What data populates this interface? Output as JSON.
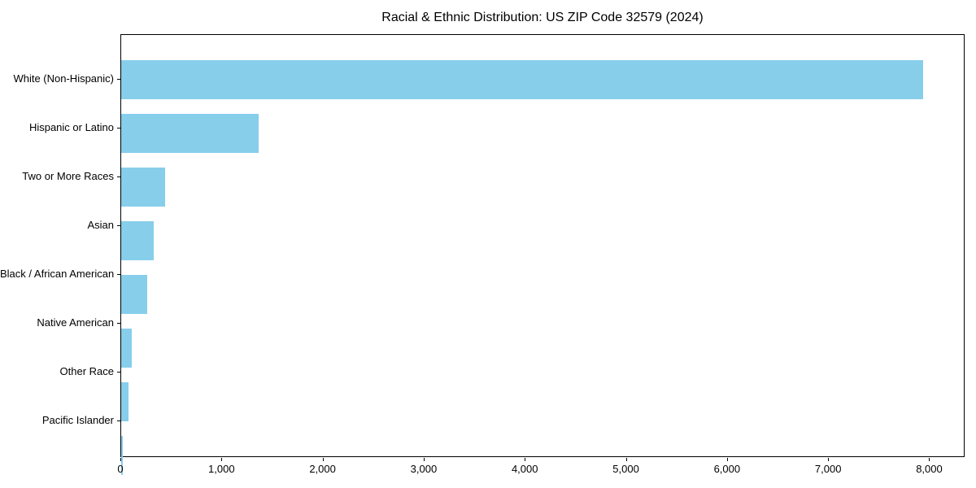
{
  "figure": {
    "background": "#ffffff",
    "text_color": "#000000",
    "spine_color": "#000000"
  },
  "chart_data": {
    "type": "bar",
    "orientation": "horizontal",
    "title": "Racial & Ethnic Distribution: US ZIP Code 32579 (2024)",
    "categories": [
      "White (Non-Hispanic)",
      "Hispanic or Latino",
      "Two or More Races",
      "Asian",
      "Black / African American",
      "Native American",
      "Other Race",
      "Pacific Islander"
    ],
    "values": [
      7950,
      1360,
      435,
      320,
      260,
      105,
      75,
      18
    ],
    "bar_color": "#87CEEB",
    "xlabel": "",
    "ylabel": "",
    "xlim": [
      0,
      8350
    ],
    "xticks": [
      0,
      1000,
      2000,
      3000,
      4000,
      5000,
      6000,
      7000,
      8000
    ],
    "xtick_labels": [
      "0",
      "1,000",
      "2,000",
      "3,000",
      "4,000",
      "5,000",
      "6,000",
      "7,000",
      "8,000"
    ],
    "grid": false,
    "legend": "none"
  }
}
